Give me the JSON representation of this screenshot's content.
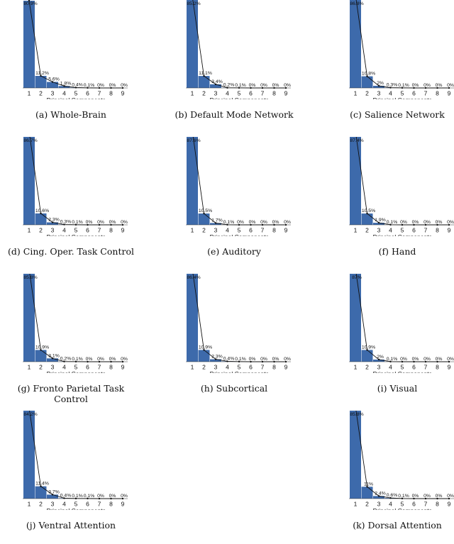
{
  "chart_data": [
    {
      "type": "bar",
      "caption": "(a) Whole-Brain",
      "xlabel": "Principal Components",
      "categories": [
        "1",
        "2",
        "3",
        "4",
        "5",
        "6",
        "7",
        "8",
        "9"
      ],
      "values": [
        80.9,
        11.2,
        5.6,
        1.8,
        0.4,
        0.1,
        0,
        0,
        0
      ],
      "value_labels": [
        "80.9%",
        "11.2%",
        "5.6%",
        "1.8%",
        "0.4%",
        "0.1%",
        "0%",
        "0%",
        "0%"
      ],
      "ylim": [
        0,
        100
      ],
      "overlay": "line"
    },
    {
      "type": "bar",
      "caption": "(b) Default Mode Network",
      "xlabel": "Principal Components",
      "categories": [
        "1",
        "2",
        "3",
        "4",
        "5",
        "6",
        "7",
        "8",
        "9"
      ],
      "values": [
        85.2,
        11.1,
        3.4,
        0.2,
        0.1,
        0,
        0,
        0,
        0
      ],
      "value_labels": [
        "85.2%",
        "11.1%",
        "3.4%",
        "0.2%",
        "0.1%",
        "0%",
        "0%",
        "0%",
        "0%"
      ],
      "ylim": [
        0,
        100
      ],
      "overlay": "line"
    },
    {
      "type": "bar",
      "caption": "(c) Salience Network",
      "xlabel": "Principal Components",
      "categories": [
        "1",
        "2",
        "3",
        "4",
        "5",
        "6",
        "7",
        "8",
        "9"
      ],
      "values": [
        86.8,
        10.8,
        2,
        0.3,
        0.1,
        0,
        0,
        0,
        0
      ],
      "value_labels": [
        "86.8%",
        "10.8%",
        "2%",
        "0.3%",
        "0.1%",
        "0%",
        "0%",
        "0%",
        "0%"
      ],
      "ylim": [
        0,
        100
      ],
      "overlay": "line"
    },
    {
      "type": "bar",
      "caption": "(d) Cing. Oper. Task Control",
      "xlabel": "Principal Components",
      "categories": [
        "1",
        "2",
        "3",
        "4",
        "5",
        "6",
        "7",
        "8",
        "9"
      ],
      "values": [
        86.7,
        10.6,
        2.3,
        0.3,
        0.1,
        0,
        0,
        0,
        0
      ],
      "value_labels": [
        "86.7%",
        "10.6%",
        "2.3%",
        "0.3%",
        "0.1%",
        "0%",
        "0%",
        "0%",
        "0%"
      ],
      "ylim": [
        0,
        100
      ],
      "overlay": "line"
    },
    {
      "type": "bar",
      "caption": "(e) Auditory",
      "xlabel": "Principal Components",
      "categories": [
        "1",
        "2",
        "3",
        "4",
        "5",
        "6",
        "7",
        "8",
        "9"
      ],
      "values": [
        87.6,
        10.5,
        1.7,
        0.1,
        0,
        0,
        0,
        0,
        0
      ],
      "value_labels": [
        "87.6%",
        "10.5%",
        "1.7%",
        "0.1%",
        "0%",
        "0%",
        "0%",
        "0%",
        "0%"
      ],
      "ylim": [
        0,
        100
      ],
      "overlay": "line"
    },
    {
      "type": "bar",
      "caption": "(f) Hand",
      "xlabel": "Principal Components",
      "categories": [
        "1",
        "2",
        "3",
        "4",
        "5",
        "6",
        "7",
        "8",
        "9"
      ],
      "values": [
        87.4,
        10.5,
        1.9,
        0.1,
        0,
        0,
        0,
        0,
        0
      ],
      "value_labels": [
        "87.4%",
        "10.5%",
        "1.9%",
        "0.1%",
        "0%",
        "0%",
        "0%",
        "0%",
        "0%"
      ],
      "ylim": [
        0,
        100
      ],
      "overlay": "line"
    },
    {
      "type": "bar",
      "caption": "(g) Fronto Parietal Task Control",
      "xlabel": "Principal Components",
      "categories": [
        "1",
        "2",
        "3",
        "4",
        "5",
        "6",
        "7",
        "8",
        "9"
      ],
      "values": [
        85.8,
        10.9,
        3.1,
        0.2,
        0.1,
        0,
        0,
        0,
        0
      ],
      "value_labels": [
        "85.8%",
        "10.9%",
        "3.1%",
        "0.2%",
        "0.1%",
        "0%",
        "0%",
        "0%",
        "0%"
      ],
      "ylim": [
        0,
        100
      ],
      "overlay": "line"
    },
    {
      "type": "bar",
      "caption": "(h) Subcortical",
      "xlabel": "Principal Components",
      "categories": [
        "1",
        "2",
        "3",
        "4",
        "5",
        "6",
        "7",
        "8",
        "9"
      ],
      "values": [
        86.4,
        10.9,
        2.3,
        0.4,
        0.1,
        0,
        0,
        0,
        0
      ],
      "value_labels": [
        "86.4%",
        "10.9%",
        "2.3%",
        "0.4%",
        "0.1%",
        "0%",
        "0%",
        "0%",
        "0%"
      ],
      "ylim": [
        0,
        100
      ],
      "overlay": "line"
    },
    {
      "type": "bar",
      "caption": "(i) Visual",
      "xlabel": "Principal Components",
      "categories": [
        "1",
        "2",
        "3",
        "4",
        "5",
        "6",
        "7",
        "8",
        "9"
      ],
      "values": [
        87,
        10.9,
        2,
        0.1,
        0,
        0,
        0,
        0,
        0
      ],
      "value_labels": [
        "87%",
        "10.9%",
        "2%",
        "0.1%",
        "0%",
        "0%",
        "0%",
        "0%",
        "0%"
      ],
      "ylim": [
        0,
        100
      ],
      "overlay": "line"
    },
    {
      "type": "bar",
      "caption": "(j) Ventral Attention",
      "xlabel": "Principal Components",
      "categories": [
        "1",
        "2",
        "3",
        "4",
        "5",
        "6",
        "7",
        "8",
        "9"
      ],
      "values": [
        84.2,
        11.4,
        3.7,
        0.4,
        0.1,
        0.1,
        0,
        0,
        0
      ],
      "value_labels": [
        "84.2%",
        "11.4%",
        "3.7%",
        "0.4%",
        "0.1%",
        "0.1%",
        "0%",
        "0%",
        "0%"
      ],
      "ylim": [
        0,
        100
      ],
      "overlay": "line"
    },
    {
      "type": "bar",
      "caption": "(k) Dorsal Attention",
      "xlabel": "Principal Components",
      "categories": [
        "1",
        "2",
        "3",
        "4",
        "5",
        "6",
        "7",
        "8",
        "9"
      ],
      "values": [
        85.8,
        11,
        2.4,
        0.6,
        0.1,
        0,
        0,
        0,
        0
      ],
      "value_labels": [
        "85.8%",
        "11%",
        "2.4%",
        "0.6%",
        "0.1%",
        "0%",
        "0%",
        "0%",
        "0%"
      ],
      "ylim": [
        0,
        100
      ],
      "overlay": "line"
    }
  ],
  "colors": {
    "bar": "#3d6aab",
    "line": "#111111",
    "text": "#111111"
  }
}
